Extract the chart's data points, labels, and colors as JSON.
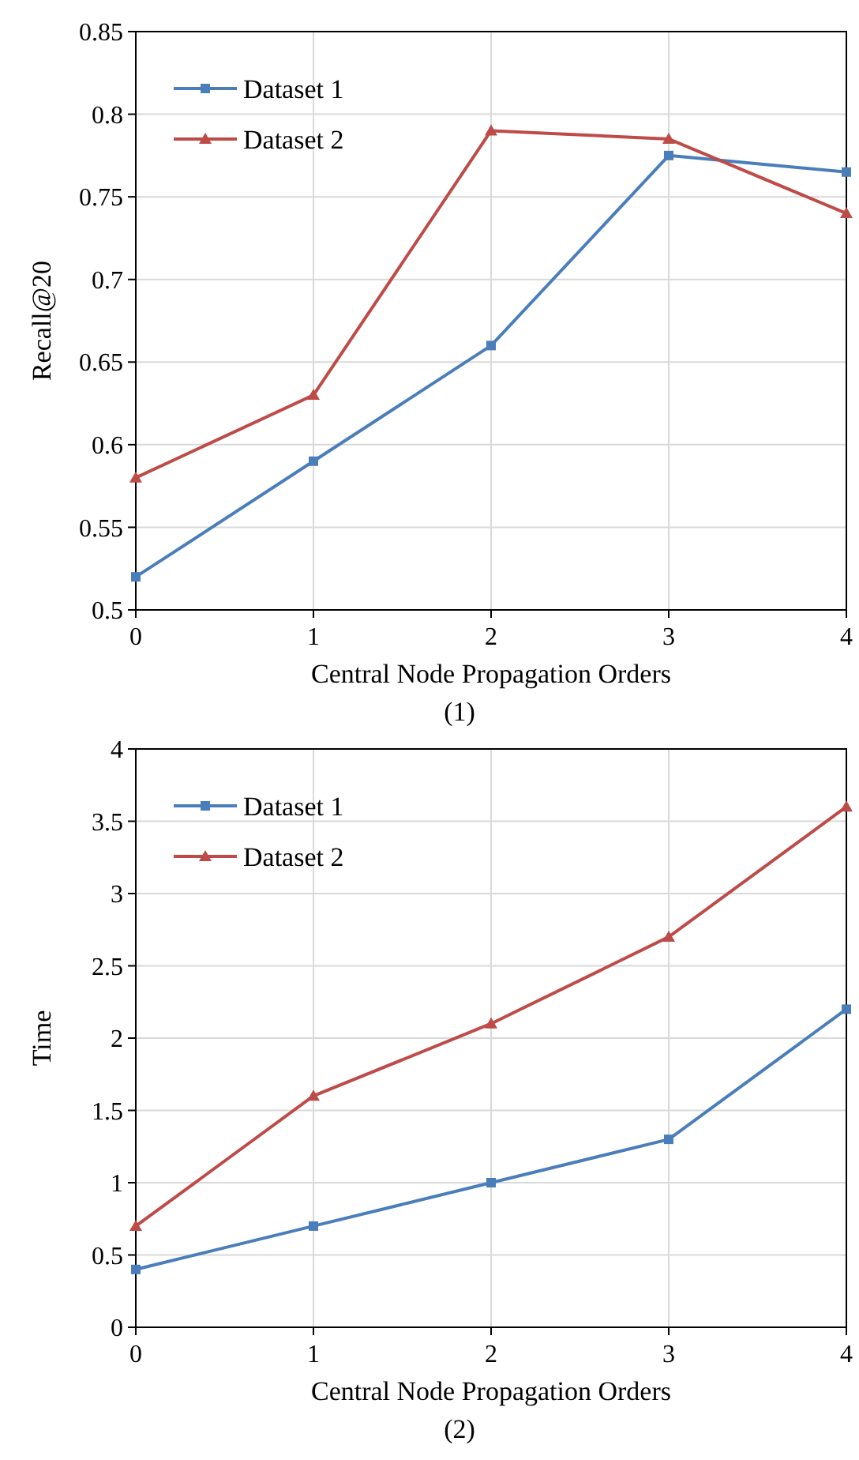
{
  "chart_data": [
    {
      "type": "line",
      "ylabel": "Recall@20",
      "xlabel": "Central Node Propagation Orders",
      "annotations": [
        "(1)"
      ],
      "x": [
        0,
        1,
        2,
        3,
        4
      ],
      "xlim": [
        0,
        4
      ],
      "xticks": [
        0,
        1,
        2,
        3,
        4
      ],
      "ylim": [
        0.5,
        0.85
      ],
      "yticks": [
        0.5,
        0.55,
        0.6,
        0.65,
        0.7,
        0.75,
        0.8,
        0.85
      ],
      "grid": true,
      "legend": "top left",
      "line_style": "solid",
      "series": [
        {
          "name": "Dataset 1",
          "color": "#4a7ebb",
          "marker": "square",
          "values": [
            0.52,
            0.59,
            0.66,
            0.775,
            0.765
          ]
        },
        {
          "name": "Dataset 2",
          "color": "#be4b48",
          "marker": "triangle",
          "values": [
            0.58,
            0.63,
            0.79,
            0.785,
            0.74
          ]
        }
      ]
    },
    {
      "type": "line",
      "ylabel": "Time",
      "xlabel": "Central Node Propagation Orders",
      "annotations": [
        "(2)"
      ],
      "x": [
        0,
        1,
        2,
        3,
        4
      ],
      "xlim": [
        0,
        4
      ],
      "xticks": [
        0,
        1,
        2,
        3,
        4
      ],
      "ylim": [
        0,
        4
      ],
      "yticks": [
        0,
        0.5,
        1,
        1.5,
        2,
        2.5,
        3,
        3.5,
        4
      ],
      "grid": true,
      "legend": "top left",
      "line_style": "solid",
      "series": [
        {
          "name": "Dataset 1",
          "color": "#4a7ebb",
          "marker": "square",
          "values": [
            0.4,
            0.7,
            1.0,
            1.3,
            2.2
          ]
        },
        {
          "name": "Dataset 2",
          "color": "#be4b48",
          "marker": "triangle",
          "values": [
            0.7,
            1.6,
            2.1,
            2.7,
            3.6
          ]
        }
      ]
    }
  ]
}
